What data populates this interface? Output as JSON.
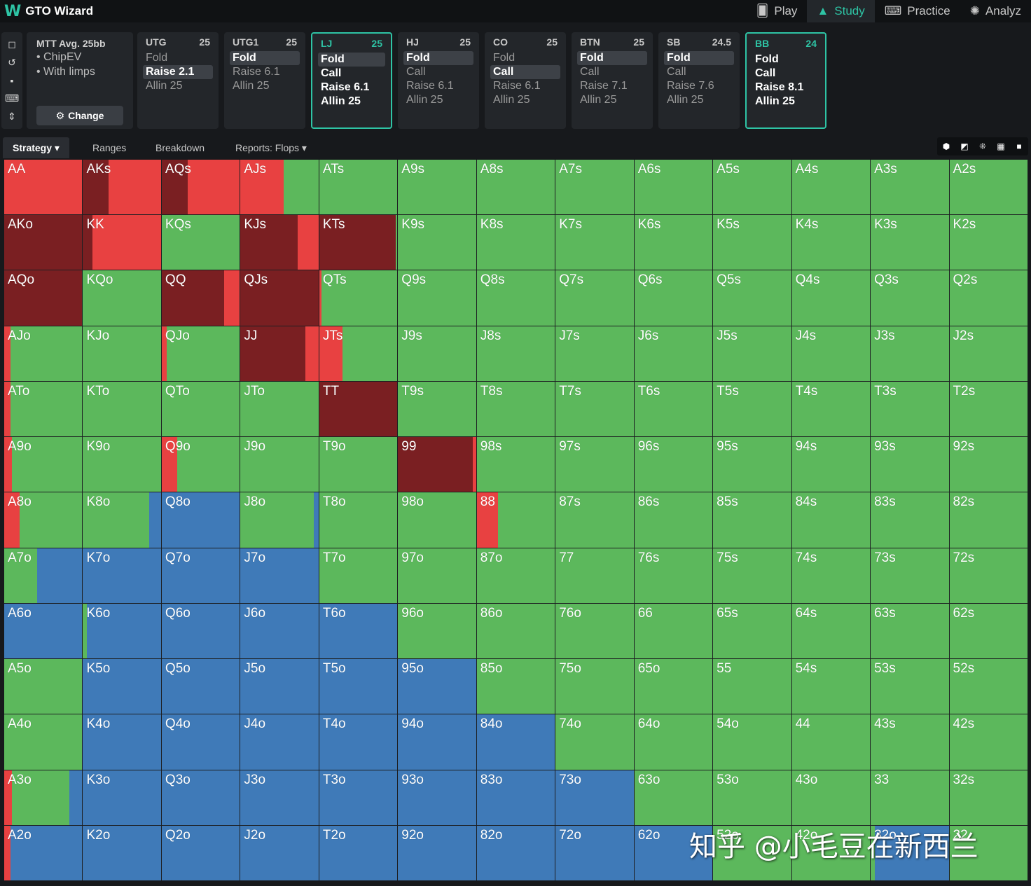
{
  "app": {
    "logo_glyph": "W",
    "title": "GTO Wizard"
  },
  "nav": [
    {
      "icon": "cards-icon",
      "glyph": "🂠",
      "label": "Play",
      "active": false
    },
    {
      "icon": "graduation-cap-icon",
      "glyph": "▲",
      "label": "Study",
      "active": true
    },
    {
      "icon": "gamepad-icon",
      "glyph": "⌨",
      "label": "Practice",
      "active": false
    },
    {
      "icon": "lightbulb-icon",
      "glyph": "✺",
      "label": "Analyz",
      "active": false
    }
  ],
  "side_tools": [
    {
      "name": "bookmark-icon",
      "glyph": "◻"
    },
    {
      "name": "history-icon",
      "glyph": "↺"
    },
    {
      "name": "save-icon",
      "glyph": "▪"
    },
    {
      "name": "gamepad-icon",
      "glyph": "⌨"
    },
    {
      "name": "collapse-icon",
      "glyph": "⇕"
    }
  ],
  "info": {
    "title": "MTT  Avg. 25bb",
    "lines": [
      "• ChipEV",
      "• With limps"
    ],
    "change_label": "Change",
    "change_icon": "⚙"
  },
  "positions": [
    {
      "name": "UTG",
      "stack": "25",
      "active": false,
      "actions": [
        {
          "label": "Fold",
          "style": ""
        },
        {
          "label": "Raise 2.1",
          "style": "sel"
        },
        {
          "label": "Allin 25",
          "style": ""
        }
      ]
    },
    {
      "name": "UTG1",
      "stack": "25",
      "active": false,
      "actions": [
        {
          "label": "Fold",
          "style": "sel"
        },
        {
          "label": "Raise 6.1",
          "style": ""
        },
        {
          "label": "Allin 25",
          "style": ""
        }
      ]
    },
    {
      "name": "LJ",
      "stack": "25",
      "active": true,
      "actions": [
        {
          "label": "Fold",
          "style": "sel"
        },
        {
          "label": "Call",
          "style": "bold"
        },
        {
          "label": "Raise 6.1",
          "style": "bold"
        },
        {
          "label": "Allin 25",
          "style": "bold"
        }
      ]
    },
    {
      "name": "HJ",
      "stack": "25",
      "active": false,
      "actions": [
        {
          "label": "Fold",
          "style": "sel"
        },
        {
          "label": "Call",
          "style": ""
        },
        {
          "label": "Raise 6.1",
          "style": ""
        },
        {
          "label": "Allin 25",
          "style": ""
        }
      ]
    },
    {
      "name": "CO",
      "stack": "25",
      "active": false,
      "actions": [
        {
          "label": "Fold",
          "style": ""
        },
        {
          "label": "Call",
          "style": "sel"
        },
        {
          "label": "Raise 6.1",
          "style": ""
        },
        {
          "label": "Allin 25",
          "style": ""
        }
      ]
    },
    {
      "name": "BTN",
      "stack": "25",
      "active": false,
      "actions": [
        {
          "label": "Fold",
          "style": "sel"
        },
        {
          "label": "Call",
          "style": ""
        },
        {
          "label": "Raise 7.1",
          "style": ""
        },
        {
          "label": "Allin 25",
          "style": ""
        }
      ]
    },
    {
      "name": "SB",
      "stack": "24.5",
      "active": false,
      "actions": [
        {
          "label": "Fold",
          "style": "sel"
        },
        {
          "label": "Call",
          "style": ""
        },
        {
          "label": "Raise 7.6",
          "style": ""
        },
        {
          "label": "Allin 25",
          "style": ""
        }
      ]
    },
    {
      "name": "BB",
      "stack": "24",
      "active": true,
      "actions": [
        {
          "label": "Fold",
          "style": "bold"
        },
        {
          "label": "Call",
          "style": "bold"
        },
        {
          "label": "Raise 8.1",
          "style": "bold"
        },
        {
          "label": "Allin 25",
          "style": "bold"
        }
      ]
    }
  ],
  "tabs": [
    {
      "label": "Strategy ▾",
      "active": true
    },
    {
      "label": "Ranges",
      "active": false
    },
    {
      "label": "Breakdown",
      "active": false
    },
    {
      "label": "Reports: Flops ▾",
      "active": false
    }
  ],
  "view_tools": [
    {
      "name": "cube-icon",
      "glyph": "⬢"
    },
    {
      "name": "contrast-icon",
      "glyph": "◩"
    },
    {
      "name": "compact-icon",
      "glyph": "⁜"
    },
    {
      "name": "grid-icon",
      "glyph": "▦"
    },
    {
      "name": "square-icon",
      "glyph": "■"
    }
  ],
  "colors": {
    "allin": "#7a1f22",
    "raise": "#e84141",
    "call": "#5cb85c",
    "fold": "#3f7ab8"
  },
  "grid": {
    "rows": [
      [
        "AA",
        "AKs",
        "AQs",
        "AJs",
        "ATs",
        "A9s",
        "A8s",
        "A7s",
        "A6s",
        "A5s",
        "A4s",
        "A3s",
        "A2s"
      ],
      [
        "AKo",
        "KK",
        "KQs",
        "KJs",
        "KTs",
        "K9s",
        "K8s",
        "K7s",
        "K6s",
        "K5s",
        "K4s",
        "K3s",
        "K2s"
      ],
      [
        "AQo",
        "KQo",
        "QQ",
        "QJs",
        "QTs",
        "Q9s",
        "Q8s",
        "Q7s",
        "Q6s",
        "Q5s",
        "Q4s",
        "Q3s",
        "Q2s"
      ],
      [
        "AJo",
        "KJo",
        "QJo",
        "JJ",
        "JTs",
        "J9s",
        "J8s",
        "J7s",
        "J6s",
        "J5s",
        "J4s",
        "J3s",
        "J2s"
      ],
      [
        "ATo",
        "KTo",
        "QTo",
        "JTo",
        "TT",
        "T9s",
        "T8s",
        "T7s",
        "T6s",
        "T5s",
        "T4s",
        "T3s",
        "T2s"
      ],
      [
        "A9o",
        "K9o",
        "Q9o",
        "J9o",
        "T9o",
        "99",
        "98s",
        "97s",
        "96s",
        "95s",
        "94s",
        "93s",
        "92s"
      ],
      [
        "A8o",
        "K8o",
        "Q8o",
        "J8o",
        "T8o",
        "98o",
        "88",
        "87s",
        "86s",
        "85s",
        "84s",
        "83s",
        "82s"
      ],
      [
        "A7o",
        "K7o",
        "Q7o",
        "J7o",
        "T7o",
        "97o",
        "87o",
        "77",
        "76s",
        "75s",
        "74s",
        "73s",
        "72s"
      ],
      [
        "A6o",
        "K6o",
        "Q6o",
        "J6o",
        "T6o",
        "96o",
        "86o",
        "76o",
        "66",
        "65s",
        "64s",
        "63s",
        "62s"
      ],
      [
        "A5o",
        "K5o",
        "Q5o",
        "J5o",
        "T5o",
        "95o",
        "85o",
        "75o",
        "65o",
        "55",
        "54s",
        "53s",
        "52s"
      ],
      [
        "A4o",
        "K4o",
        "Q4o",
        "J4o",
        "T4o",
        "94o",
        "84o",
        "74o",
        "64o",
        "54o",
        "44",
        "43s",
        "42s"
      ],
      [
        "A3o",
        "K3o",
        "Q3o",
        "J3o",
        "T3o",
        "93o",
        "83o",
        "73o",
        "63o",
        "53o",
        "43o",
        "33",
        "32s"
      ],
      [
        "A2o",
        "K2o",
        "Q2o",
        "J2o",
        "T2o",
        "92o",
        "82o",
        "72o",
        "62o",
        "52o",
        "42o",
        "32o",
        "22"
      ]
    ],
    "strategy": {
      "AA": [
        0,
        1,
        0,
        0
      ],
      "AKs": [
        0.33,
        0.67,
        0,
        0
      ],
      "AQs": [
        0.33,
        0.67,
        0,
        0
      ],
      "AJs": [
        0,
        0.55,
        0.45,
        0
      ],
      "AKo": [
        1,
        0,
        0,
        0
      ],
      "KK": [
        0.12,
        0.88,
        0,
        0
      ],
      "KJs": [
        0.73,
        0.27,
        0,
        0
      ],
      "KTs": [
        0.98,
        0,
        0.02,
        0
      ],
      "AQo": [
        1,
        0,
        0,
        0
      ],
      "QQ": [
        0.8,
        0.2,
        0,
        0
      ],
      "QJs": [
        1,
        0,
        0,
        0
      ],
      "QTs": [
        0,
        0.03,
        0.97,
        0
      ],
      "AJo": [
        0,
        0.08,
        0.92,
        0
      ],
      "QJo": [
        0,
        0.06,
        0.94,
        0
      ],
      "JJ": [
        0.83,
        0.17,
        0,
        0
      ],
      "JTs": [
        0,
        0.3,
        0.7,
        0
      ],
      "ATo": [
        0,
        0.08,
        0.92,
        0
      ],
      "TT": [
        1,
        0,
        0,
        0
      ],
      "A9o": [
        0,
        0.1,
        0.9,
        0
      ],
      "Q9o": [
        0,
        0.2,
        0.8,
        0
      ],
      "99": [
        0.96,
        0.04,
        0,
        0
      ],
      "A8o": [
        0,
        0.2,
        0.8,
        0
      ],
      "K8o": [
        0,
        0,
        0.85,
        0.15
      ],
      "Q8o": [
        0,
        0,
        0,
        1
      ],
      "J8o": [
        0,
        0,
        0.94,
        0.06
      ],
      "88": [
        0,
        0.27,
        0.73,
        0
      ],
      "A7o": [
        0,
        0,
        0.42,
        0.58
      ],
      "K7o": [
        0,
        0,
        0,
        1
      ],
      "Q7o": [
        0,
        0,
        0,
        1
      ],
      "J7o": [
        0,
        0,
        0,
        1
      ],
      "A6o": [
        0,
        0,
        0,
        1
      ],
      "K6o": [
        0,
        0,
        0.05,
        0.95
      ],
      "Q6o": [
        0,
        0,
        0,
        1
      ],
      "J6o": [
        0,
        0,
        0,
        1
      ],
      "T6o": [
        0,
        0,
        0,
        1
      ],
      "K5o": [
        0,
        0,
        0,
        1
      ],
      "Q5o": [
        0,
        0,
        0,
        1
      ],
      "J5o": [
        0,
        0,
        0,
        1
      ],
      "T5o": [
        0,
        0,
        0,
        1
      ],
      "95o": [
        0,
        0,
        0,
        1
      ],
      "K4o": [
        0,
        0,
        0,
        1
      ],
      "Q4o": [
        0,
        0,
        0,
        1
      ],
      "J4o": [
        0,
        0,
        0,
        1
      ],
      "T4o": [
        0,
        0,
        0,
        1
      ],
      "94o": [
        0,
        0,
        0,
        1
      ],
      "84o": [
        0,
        0,
        0,
        1
      ],
      "A3o": [
        0,
        0.1,
        0.73,
        0.17
      ],
      "K3o": [
        0,
        0,
        0,
        1
      ],
      "Q3o": [
        0,
        0,
        0,
        1
      ],
      "J3o": [
        0,
        0,
        0,
        1
      ],
      "T3o": [
        0,
        0,
        0,
        1
      ],
      "93o": [
        0,
        0,
        0,
        1
      ],
      "83o": [
        0,
        0,
        0,
        1
      ],
      "73o": [
        0,
        0,
        0,
        1
      ],
      "A2o": [
        0,
        0.08,
        0,
        0.92
      ],
      "K2o": [
        0,
        0,
        0,
        1
      ],
      "Q2o": [
        0,
        0,
        0,
        1
      ],
      "J2o": [
        0,
        0,
        0,
        1
      ],
      "T2o": [
        0,
        0,
        0,
        1
      ],
      "92o": [
        0,
        0,
        0,
        1
      ],
      "82o": [
        0,
        0,
        0,
        1
      ],
      "72o": [
        0,
        0,
        0,
        1
      ],
      "62o": [
        0,
        0,
        0,
        1
      ],
      "32o": [
        0,
        0,
        0.05,
        0.95
      ]
    }
  },
  "watermark": "知乎 @小毛豆在新西兰"
}
